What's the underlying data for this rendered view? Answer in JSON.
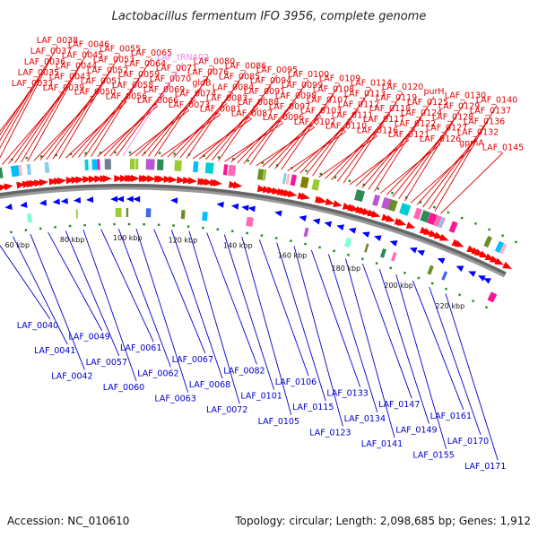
{
  "title": "Lactobacillus fermentum IFO 3956, complete genome",
  "footer": {
    "accession": "Accession: NC_010610",
    "summary": "Topology: circular; Length: 2,098,685 bp; Genes: 1,912"
  },
  "colors": {
    "forward_label": "#e00000",
    "reverse_label": "#0000cc",
    "trna_label": "#ee82ee",
    "forward_arrow": "#ff0000",
    "reverse_arrow": "#0000ff",
    "backbone": "#999999",
    "tick": "#228b22"
  },
  "scale_ticks": [
    "60 kbp",
    "80 kbp",
    "100 kbp",
    "120 kbp",
    "140 kbp",
    "160 kbp",
    "180 kbp",
    "200 kbp",
    "220 kbp"
  ],
  "forward_labels": [
    {
      "text": "LAF_0033"
    },
    {
      "text": "LAF_0035"
    },
    {
      "text": "LAF_0036"
    },
    {
      "text": "LAF_0037"
    },
    {
      "text": "LAF_0038"
    },
    {
      "text": "LAF_0039"
    },
    {
      "text": "LAF_0043"
    },
    {
      "text": "LAF_0044"
    },
    {
      "text": "LAF_0045"
    },
    {
      "text": "LAF_0046"
    },
    {
      "text": "LAF_0050"
    },
    {
      "text": "LAF_0051"
    },
    {
      "text": "LAF_0052"
    },
    {
      "text": "LAF_0053"
    },
    {
      "text": "LAF_0055"
    },
    {
      "text": "LAF_0056"
    },
    {
      "text": "LAF_0058"
    },
    {
      "text": "LAF_0059"
    },
    {
      "text": "LAF_0064"
    },
    {
      "text": "LAF_0065"
    },
    {
      "text": "LAF_0066"
    },
    {
      "text": "LAF_0069"
    },
    {
      "text": "LAF_0070"
    },
    {
      "text": "LAF_0071"
    },
    {
      "text": "LAF_tRNA02",
      "trna": true
    },
    {
      "text": "LAF_0073"
    },
    {
      "text": "LAF_0074"
    },
    {
      "text": "gldB"
    },
    {
      "text": "LAF_0076"
    },
    {
      "text": "LAF_0080"
    },
    {
      "text": "LAF_0081"
    },
    {
      "text": "LAF_0083"
    },
    {
      "text": "LAF_0084"
    },
    {
      "text": "LAF_0085"
    },
    {
      "text": "LAF_0086"
    },
    {
      "text": "LAF_0087"
    },
    {
      "text": "LAF_0088"
    },
    {
      "text": "LAF_0091"
    },
    {
      "text": "LAF_0094"
    },
    {
      "text": "LAF_0095"
    },
    {
      "text": "LAF_0096"
    },
    {
      "text": "LAF_0097"
    },
    {
      "text": "LAF_0098"
    },
    {
      "text": "LAF_0099"
    },
    {
      "text": "LAF_0100"
    },
    {
      "text": "LAF_0102"
    },
    {
      "text": "LAF_0103"
    },
    {
      "text": "LAF_0107"
    },
    {
      "text": "LAF_0108"
    },
    {
      "text": "LAF_0109"
    },
    {
      "text": "LAF_0110"
    },
    {
      "text": "LAF_0111"
    },
    {
      "text": "LAF_0112"
    },
    {
      "text": "LAF_0113"
    },
    {
      "text": "LAF_0114"
    },
    {
      "text": "LAF_0116"
    },
    {
      "text": "LAF_0117"
    },
    {
      "text": "LAF_0118"
    },
    {
      "text": "LAF_0119"
    },
    {
      "text": "LAF_0120"
    },
    {
      "text": "LAF_0121"
    },
    {
      "text": "LAF_0122"
    },
    {
      "text": "LAF_0124"
    },
    {
      "text": "LAF_0125"
    },
    {
      "text": "purH"
    },
    {
      "text": "LAF_0126"
    },
    {
      "text": "LAF_0127"
    },
    {
      "text": "LAF_0128"
    },
    {
      "text": "LAF_0129"
    },
    {
      "text": "LAF_0130"
    },
    {
      "text": "gpmA"
    },
    {
      "text": "LAF_0132"
    },
    {
      "text": "LAF_0136"
    },
    {
      "text": "LAF_0137"
    },
    {
      "text": "LAF_0140"
    },
    {
      "text": "LAF_0145"
    }
  ],
  "reverse_labels": [
    {
      "text": "LAF_0040"
    },
    {
      "text": "LAF_0041"
    },
    {
      "text": "LAF_0042"
    },
    {
      "text": "LAF_0049"
    },
    {
      "text": "LAF_0057"
    },
    {
      "text": "LAF_0060"
    },
    {
      "text": "LAF_0061"
    },
    {
      "text": "LAF_0062"
    },
    {
      "text": "LAF_0063"
    },
    {
      "text": "LAF_0067"
    },
    {
      "text": "LAF_0068"
    },
    {
      "text": "LAF_0072"
    },
    {
      "text": "LAF_0082"
    },
    {
      "text": "LAF_0101"
    },
    {
      "text": "LAF_0105"
    },
    {
      "text": "LAF_0106"
    },
    {
      "text": "LAF_0115"
    },
    {
      "text": "LAF_0123"
    },
    {
      "text": "LAF_0133"
    },
    {
      "text": "LAF_0134"
    },
    {
      "text": "LAF_0141"
    },
    {
      "text": "LAF_0147"
    },
    {
      "text": "LAF_0149"
    },
    {
      "text": "LAF_0155"
    },
    {
      "text": "LAF_0161"
    },
    {
      "text": "LAF_0170"
    },
    {
      "text": "LAF_0171"
    }
  ]
}
